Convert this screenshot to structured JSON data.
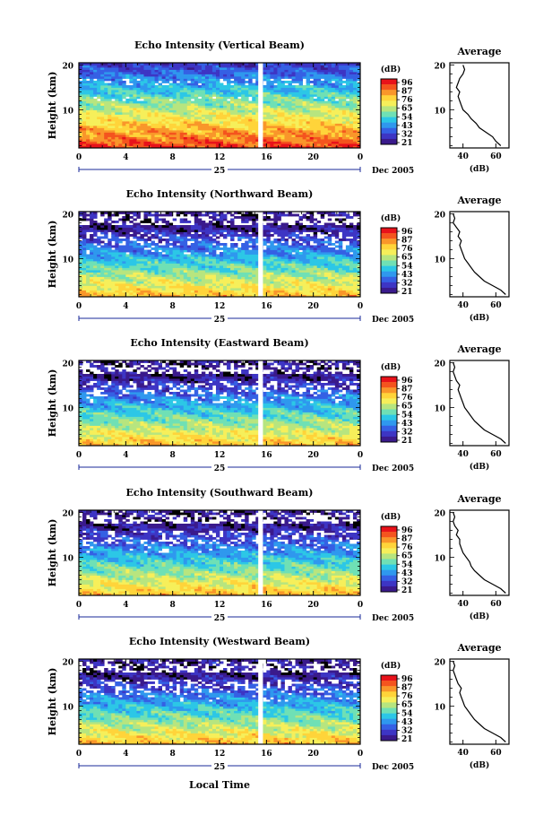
{
  "chart_data": {
    "type": "heatmap",
    "panels": [
      {
        "title": "Echo Intensity (Vertical Beam)"
      },
      {
        "title": "Echo Intensity (Northward Beam)"
      },
      {
        "title": "Echo Intensity (Eastward Beam)"
      },
      {
        "title": "Echo Intensity (Southward Beam)"
      },
      {
        "title": "Echo Intensity (Westward Beam)"
      }
    ],
    "x_ticks": [
      "0",
      "4",
      "8",
      "12",
      "16",
      "20",
      "0"
    ],
    "x_range_hours": [
      0,
      24
    ],
    "day_label": "25",
    "date_label": "Dec 2005",
    "xlabel": "Local Time",
    "y_label": "Height (km)",
    "y_ticks": [
      "20",
      "10"
    ],
    "y_range_km": [
      1.5,
      20.5
    ],
    "colorbar": {
      "unit": "(dB)",
      "labels": [
        "96",
        "87",
        "76",
        "65",
        "54",
        "43",
        "32",
        "21"
      ],
      "colors": [
        "#e8121a",
        "#f4541e",
        "#f9962a",
        "#ffd43a",
        "#f6ef5a",
        "#b7e57f",
        "#6fe0b5",
        "#2cc7e6",
        "#2f98ee",
        "#3560e4",
        "#3d35c4",
        "#3a1a8c"
      ]
    },
    "profile": {
      "title": "Average",
      "xlabel": "(dB)",
      "x_ticks": [
        [
          "40",
          "60"
        ],
        [
          "40",
          "60"
        ],
        [
          "40",
          "60"
        ],
        [
          "40",
          "60"
        ],
        [
          "40",
          "60"
        ]
      ],
      "y_ticks": [
        "20",
        "10"
      ],
      "series": [
        {
          "height_km": [
            2,
            3,
            4,
            5,
            6,
            7,
            8,
            9,
            10,
            11,
            12,
            13,
            14,
            15,
            16,
            17,
            18,
            19,
            20
          ],
          "db": [
            63,
            60,
            58,
            54,
            50,
            48,
            45,
            43,
            40,
            39,
            38,
            37,
            38,
            36,
            37,
            38,
            40,
            41,
            40
          ]
        },
        {
          "height_km": [
            2,
            3,
            4,
            5,
            6,
            7,
            8,
            9,
            10,
            11,
            12,
            13,
            14,
            15,
            16,
            17,
            18,
            19,
            20
          ],
          "db": [
            66,
            63,
            58,
            53,
            50,
            47,
            45,
            43,
            41,
            40,
            39,
            38,
            39,
            37,
            38,
            36,
            34,
            35,
            34
          ]
        },
        {
          "height_km": [
            2,
            3,
            4,
            5,
            6,
            7,
            8,
            9,
            10,
            11,
            12,
            13,
            14,
            15,
            16,
            17,
            18,
            19,
            20
          ],
          "db": [
            66,
            63,
            58,
            53,
            50,
            47,
            45,
            43,
            41,
            40,
            39,
            38,
            37,
            38,
            36,
            35,
            34,
            35,
            34
          ]
        },
        {
          "height_km": [
            2,
            3,
            4,
            5,
            6,
            7,
            8,
            9,
            10,
            11,
            12,
            13,
            14,
            15,
            16,
            17,
            18,
            19,
            20
          ],
          "db": [
            66,
            63,
            58,
            53,
            50,
            47,
            45,
            44,
            42,
            40,
            39,
            38,
            38,
            36,
            37,
            35,
            34,
            35,
            34
          ]
        },
        {
          "height_km": [
            2,
            3,
            4,
            5,
            6,
            7,
            8,
            9,
            10,
            11,
            12,
            13,
            14,
            15,
            16,
            17,
            18,
            19,
            20
          ],
          "db": [
            66,
            63,
            58,
            53,
            50,
            47,
            45,
            43,
            41,
            40,
            39,
            38,
            39,
            37,
            36,
            35,
            34,
            35,
            34
          ]
        }
      ],
      "x_range_db": [
        32,
        68
      ]
    },
    "data_gap_hours": [
      15.3,
      15.7
    ],
    "grid": false
  }
}
